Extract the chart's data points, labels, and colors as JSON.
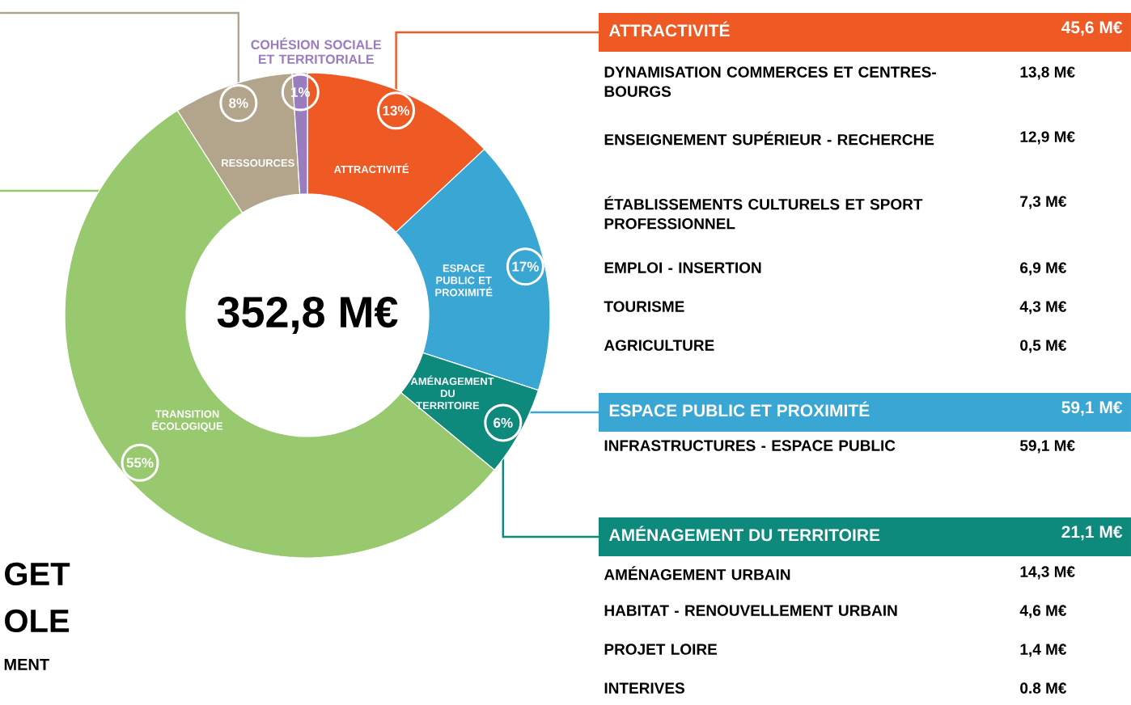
{
  "chart_data": {
    "type": "donut",
    "categories": [
      "ATTRACTIVITÉ",
      "ESPACE PUBLIC ET PROXIMITÉ",
      "AMÉNAGEMENT DU TERRITOIRE",
      "TRANSITION ÉCOLOGIQUE",
      "RESSOURCES",
      "COHÉSION SOCIALE ET TERRITORIALE"
    ],
    "values": [
      13,
      17,
      6,
      55,
      8,
      1
    ],
    "value_labels": [
      "13%",
      "17%",
      "6%",
      "55%",
      "8%",
      "1%"
    ],
    "colors": [
      "#ef5a24",
      "#3aa6d4",
      "#0e8a7c",
      "#98c96e",
      "#b3a48c",
      "#9a7dbf"
    ],
    "annotations": [
      "352,8 M€",
      "ATTRACTIVITÉ",
      "45,6 M€",
      "DYNAMISATION COMMERCES ET CENTRES-BOURGS",
      "13,8 M€",
      "ENSEIGNEMENT SUPÉRIEUR - RECHERCHE",
      "12,9 M€",
      "ÉTABLISSEMENTS CULTURELS ET SPORT PROFESSIONNEL",
      "7,3 M€",
      "EMPLOI - INSERTION",
      "6,9 M€",
      "TOURISME",
      "4,3 M€",
      "AGRICULTURE",
      "0,5 M€",
      "ESPACE PUBLIC ET PROXIMITÉ",
      "59,1 M€",
      "INFRASTRUCTURES - ESPACE PUBLIC",
      "59,1 M€",
      "AMÉNAGEMENT DU TERRITOIRE",
      "21,1 M€",
      "AMÉNAGEMENT URBAIN",
      "14,3 M€",
      "HABITAT - RENOUVELLEMENT URBAIN",
      "4,6 M€",
      "PROJET LOIRE",
      "1,4 M€",
      "INTERIVES",
      "0.8 M€",
      "GET",
      "OLE",
      "MENT"
    ]
  }
}
